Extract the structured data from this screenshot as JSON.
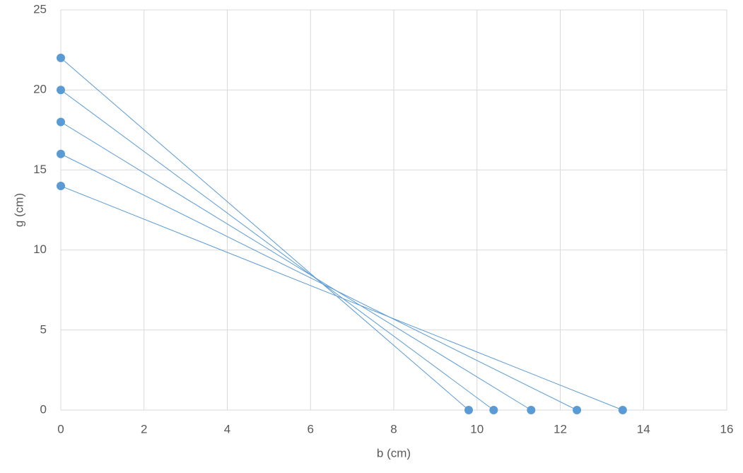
{
  "chart_data": {
    "type": "scatter-line",
    "x_label": "b (cm)",
    "y_label": "g (cm)",
    "series": [
      {
        "color": "#5b9bd5",
        "x": [
          0,
          9.8
        ],
        "values": [
          22,
          0
        ]
      },
      {
        "color": "#5b9bd5",
        "x": [
          0,
          10.4
        ],
        "values": [
          20,
          0
        ]
      },
      {
        "color": "#5b9bd5",
        "x": [
          0,
          11.3
        ],
        "values": [
          18,
          0
        ]
      },
      {
        "color": "#5b9bd5",
        "x": [
          0,
          12.4
        ],
        "values": [
          16,
          0
        ]
      },
      {
        "color": "#5b9bd5",
        "x": [
          0,
          13.5
        ],
        "values": [
          14,
          0
        ]
      }
    ],
    "xlim": [
      0,
      16
    ],
    "xticks": [
      0,
      2,
      4,
      6,
      8,
      10,
      12,
      14,
      16
    ],
    "ylim": [
      0,
      25
    ],
    "yticks": [
      0,
      5,
      10,
      15,
      20,
      25
    ],
    "grid": true
  }
}
